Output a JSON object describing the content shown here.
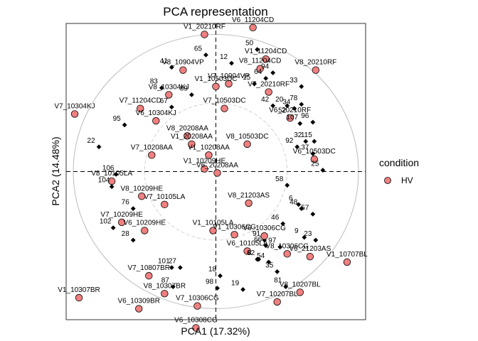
{
  "chart_data": {
    "type": "scatter",
    "title": "PCA representation",
    "xlabel": "PCA1 (17.32%)",
    "ylabel": "PCA2 (14.48%)",
    "xlim": [
      -1.05,
      1.05
    ],
    "ylim": [
      -1.08,
      1.08
    ],
    "grid": false,
    "legend": {
      "title": "condition",
      "position": "right",
      "entries": [
        {
          "label": "HV",
          "color": "#F08080"
        }
      ]
    },
    "samples": [
      {
        "label": "V1_10105LA",
        "x": -0.02,
        "y": -0.43
      },
      {
        "label": "V1_10209HE",
        "x": -0.08,
        "y": 0.02
      },
      {
        "label": "V1_10208AA",
        "x": -0.05,
        "y": 0.12
      },
      {
        "label": "V1_10306CG",
        "x": 0.13,
        "y": -0.46
      },
      {
        "label": "V1_10307BR",
        "x": -0.96,
        "y": -0.92
      },
      {
        "label": "V1_10503DC",
        "x": 0.0,
        "y": 0.62
      },
      {
        "label": "V1_10707BL",
        "x": 0.92,
        "y": -0.66
      },
      {
        "label": "V1_11204CD",
        "x": 0.35,
        "y": 0.82
      },
      {
        "label": "V1_20210RF",
        "x": -0.08,
        "y": 1.0
      },
      {
        "label": "V1_20208AA",
        "x": -0.17,
        "y": 0.2
      },
      {
        "label": "V6_10105LA",
        "x": 0.22,
        "y": -0.58
      },
      {
        "label": "V6_10209HE",
        "x": -0.5,
        "y": -0.43
      },
      {
        "label": "V6_10306CG",
        "x": 0.34,
        "y": -0.47
      },
      {
        "label": "V6_10304KJ",
        "x": -0.42,
        "y": 0.37
      },
      {
        "label": "V6_10309BR",
        "x": -0.54,
        "y": -1.0
      },
      {
        "label": "V6_10308CG",
        "x": -0.14,
        "y": -1.14
      },
      {
        "label": "V6_10503DC",
        "x": 0.69,
        "y": 0.09
      },
      {
        "label": "V6_11204CD",
        "x": 0.26,
        "y": 1.05
      },
      {
        "label": "V6_20210RF",
        "x": 0.52,
        "y": 0.39
      },
      {
        "label": "V6_20208AA",
        "x": 0.01,
        "y": -0.01
      },
      {
        "label": "V6_21203AS",
        "x": 0.66,
        "y": -0.62
      },
      {
        "label": "V7_10105LA",
        "x": -0.36,
        "y": -0.24
      },
      {
        "label": "V7_10209HE",
        "x": -0.66,
        "y": -0.37
      },
      {
        "label": "V7_10208AA",
        "x": -0.45,
        "y": 0.12
      },
      {
        "label": "V7_10306CG",
        "x": -0.13,
        "y": -0.98
      },
      {
        "label": "V7_10304KJ",
        "x": -0.99,
        "y": 0.42
      },
      {
        "label": "V7_10503DC",
        "x": 0.06,
        "y": 0.46
      },
      {
        "label": "V7_10807BR",
        "x": -0.47,
        "y": -0.76
      },
      {
        "label": "V7_10904VP",
        "x": 0.09,
        "y": 0.64
      },
      {
        "label": "V7_10207BL",
        "x": 0.43,
        "y": -0.95
      },
      {
        "label": "V7_11204CD",
        "x": -0.53,
        "y": 0.46
      },
      {
        "label": "V7_20210RF",
        "x": 0.37,
        "y": 0.58
      },
      {
        "label": "V8_10105LA",
        "x": -0.73,
        "y": -0.07
      },
      {
        "label": "V8_10209HE",
        "x": -0.52,
        "y": -0.18
      },
      {
        "label": "V8_10306CG",
        "x": 0.5,
        "y": -0.6
      },
      {
        "label": "V8_10304KJ",
        "x": -0.33,
        "y": 0.56
      },
      {
        "label": "V8_10307BR",
        "x": -0.36,
        "y": -0.89
      },
      {
        "label": "V8_10503DC",
        "x": 0.22,
        "y": 0.2
      },
      {
        "label": "V8_10904VP",
        "x": -0.23,
        "y": 0.74
      },
      {
        "label": "V8_10207BL",
        "x": 0.59,
        "y": -0.88
      },
      {
        "label": "V8_11204CD",
        "x": 0.31,
        "y": 0.75
      },
      {
        "label": "V8_20210RF",
        "x": 0.7,
        "y": 0.74
      },
      {
        "label": "V8_20208AA",
        "x": -0.2,
        "y": 0.26
      },
      {
        "label": "V8_21203AS",
        "x": 0.23,
        "y": -0.23
      }
    ],
    "variables": [
      {
        "label": "6",
        "x": 0.58,
        "y": -0.24
      },
      {
        "label": "8",
        "x": 0.29,
        "y": -0.64
      },
      {
        "label": "9",
        "x": 0.62,
        "y": -0.48
      },
      {
        "label": "12",
        "x": 0.11,
        "y": 0.79
      },
      {
        "label": "15",
        "x": 0.27,
        "y": 0.64
      },
      {
        "label": "18",
        "x": 0.03,
        "y": -0.76
      },
      {
        "label": "19",
        "x": 0.19,
        "y": -0.86
      },
      {
        "label": "20",
        "x": 0.5,
        "y": 0.48
      },
      {
        "label": "22",
        "x": -0.82,
        "y": 0.18
      },
      {
        "label": "23",
        "x": 0.7,
        "y": -0.5
      },
      {
        "label": "25",
        "x": 0.75,
        "y": 0.01
      },
      {
        "label": "27",
        "x": -0.25,
        "y": -0.7
      },
      {
        "label": "28",
        "x": -0.58,
        "y": -0.5
      },
      {
        "label": "32",
        "x": 0.63,
        "y": 0.22
      },
      {
        "label": "33",
        "x": 0.6,
        "y": 0.62
      },
      {
        "label": "34",
        "x": 0.55,
        "y": 0.46
      },
      {
        "label": "35",
        "x": 0.43,
        "y": -0.73
      },
      {
        "label": "37",
        "x": 0.68,
        "y": 0.13
      },
      {
        "label": "41",
        "x": -0.31,
        "y": 0.76
      },
      {
        "label": "42",
        "x": 0.4,
        "y": 0.48
      },
      {
        "label": "46",
        "x": 0.47,
        "y": -0.38
      },
      {
        "label": "48",
        "x": 0.6,
        "y": -0.27
      },
      {
        "label": "50",
        "x": 0.29,
        "y": 0.89
      },
      {
        "label": "52",
        "x": 0.52,
        "y": 0.4
      },
      {
        "label": "54",
        "x": 0.37,
        "y": -0.66
      },
      {
        "label": "57",
        "x": 0.68,
        "y": -0.31
      },
      {
        "label": "58",
        "x": 0.5,
        "y": -0.1
      },
      {
        "label": "62",
        "x": 0.3,
        "y": -0.64
      },
      {
        "label": "64",
        "x": 0.35,
        "y": 0.68
      },
      {
        "label": "65",
        "x": -0.07,
        "y": 0.85
      },
      {
        "label": "66",
        "x": 0.35,
        "y": -0.54
      },
      {
        "label": "67",
        "x": -0.31,
        "y": 0.47
      },
      {
        "label": "76",
        "x": -0.58,
        "y": -0.27
      },
      {
        "label": "78",
        "x": 0.6,
        "y": 0.49
      },
      {
        "label": "81",
        "x": 0.49,
        "y": -0.84
      },
      {
        "label": "83",
        "x": -0.38,
        "y": 0.61
      },
      {
        "label": "87",
        "x": -0.3,
        "y": -0.84
      },
      {
        "label": "89",
        "x": -0.17,
        "y": 0.56
      },
      {
        "label": "91",
        "x": 0.34,
        "y": -0.5
      },
      {
        "label": "92",
        "x": 0.57,
        "y": 0.18
      },
      {
        "label": "94",
        "x": 0.4,
        "y": 0.72
      },
      {
        "label": "95",
        "x": -0.64,
        "y": 0.34
      },
      {
        "label": "96",
        "x": 0.68,
        "y": 0.36
      },
      {
        "label": "97",
        "x": 0.45,
        "y": -0.55
      },
      {
        "label": "98",
        "x": 0.01,
        "y": -0.85
      },
      {
        "label": "101",
        "x": -0.31,
        "y": -0.7
      },
      {
        "label": "102",
        "x": -0.72,
        "y": -0.41
      },
      {
        "label": "104",
        "x": -0.73,
        "y": -0.11
      },
      {
        "label": "106",
        "x": -0.7,
        "y": -0.02
      },
      {
        "label": "107",
        "x": 0.59,
        "y": 0.35
      },
      {
        "label": "115",
        "x": 0.69,
        "y": 0.22
      }
    ]
  }
}
